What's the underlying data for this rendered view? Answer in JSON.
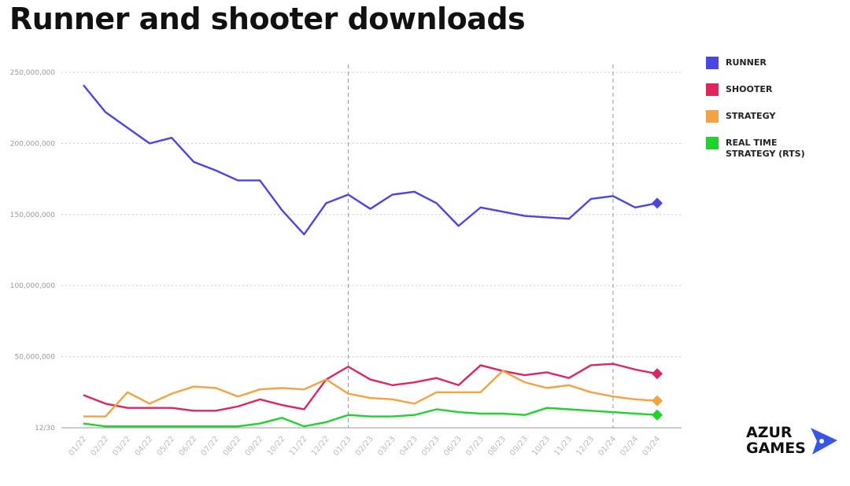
{
  "chart_data": {
    "type": "line",
    "title": "Runner and shooter downloads",
    "categories": [
      "01/22",
      "02/22",
      "03/22",
      "04/22",
      "05/22",
      "06/22",
      "07/22",
      "08/22",
      "09/22",
      "10/22",
      "11/22",
      "12/22",
      "01/23",
      "02/23",
      "03/23",
      "04/23",
      "05/23",
      "06/23",
      "07/23",
      "08/23",
      "09/23",
      "10/23",
      "11/23",
      "12/23",
      "01/24",
      "02/24",
      "03/24"
    ],
    "series": [
      {
        "name": "RUNNER",
        "color": "#4b45e6",
        "values": [
          241000000,
          222000000,
          211000000,
          200000000,
          204000000,
          187000000,
          181000000,
          174000000,
          174000000,
          153000000,
          136000000,
          158000000,
          164000000,
          154000000,
          164000000,
          166000000,
          158000000,
          142000000,
          155000000,
          152000000,
          149000000,
          148000000,
          147000000,
          161000000,
          163000000,
          155000000,
          158000000
        ]
      },
      {
        "name": "SHOOTER",
        "color": "#e0245e",
        "values": [
          23000000,
          17000000,
          14000000,
          14000000,
          14000000,
          12000000,
          12000000,
          15000000,
          20000000,
          16000000,
          13000000,
          34000000,
          43000000,
          34000000,
          30000000,
          32000000,
          35000000,
          30000000,
          44000000,
          40000000,
          37000000,
          39000000,
          35000000,
          44000000,
          45000000,
          41000000,
          38000000
        ]
      },
      {
        "name": "STRATEGY",
        "color": "#f4a340",
        "values": [
          8000000,
          8000000,
          25000000,
          17000000,
          24000000,
          29000000,
          28000000,
          22000000,
          27000000,
          28000000,
          27000000,
          34000000,
          24000000,
          21000000,
          20000000,
          17000000,
          25000000,
          25000000,
          25000000,
          40000000,
          32000000,
          28000000,
          30000000,
          25000000,
          22000000,
          20000000,
          19000000
        ]
      },
      {
        "name": "REAL TIME STRATEGY (RTS)",
        "color": "#1ed42a",
        "values": [
          3000000,
          1000000,
          1000000,
          1000000,
          1000000,
          1000000,
          1000000,
          1000000,
          3000000,
          7000000,
          1000000,
          4000000,
          9000000,
          8000000,
          8000000,
          9000000,
          13000000,
          11000000,
          10000000,
          10000000,
          9000000,
          14000000,
          13000000,
          12000000,
          11000000,
          10000000,
          9000000
        ]
      }
    ],
    "ylim": [
      0,
      260000000
    ],
    "yticks": [
      {
        "value": 0,
        "label": "12/30"
      },
      {
        "value": 50000000,
        "label": "50,000,000"
      },
      {
        "value": 100000000,
        "label": "100,000,000"
      },
      {
        "value": 150000000,
        "label": "150,000,000"
      },
      {
        "value": 200000000,
        "label": "200,000,000"
      },
      {
        "value": 250000000,
        "label": "250,000,000"
      }
    ],
    "grid": true,
    "legend": "right"
  },
  "logo": [
    "AZUR",
    "GAMES"
  ]
}
